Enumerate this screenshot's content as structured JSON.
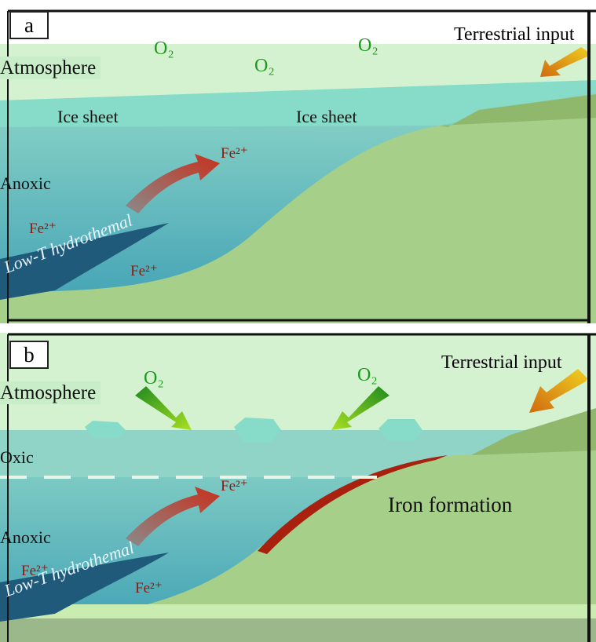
{
  "panel_a": {
    "tag": "a",
    "atmosphere": "Atmosphere",
    "o2_labels": [
      "O₂",
      "O₂",
      "O₂"
    ],
    "ice_sheet_labels": [
      "Ice sheet",
      "Ice sheet"
    ],
    "anoxic": "Anoxic",
    "fe_labels": [
      "Fe²⁺",
      "Fe²⁺",
      "Fe²⁺"
    ],
    "hydrothermal": "Low-T hydrothemal",
    "terrestrial_input": "Terrestrial input"
  },
  "panel_b": {
    "tag": "b",
    "atmosphere": "Atmosphere",
    "o2_labels": [
      "O₂",
      "O₂"
    ],
    "oxic": "Oxic",
    "anoxic": "Anoxic",
    "fe_labels": [
      "Fe²⁺",
      "Fe²⁺",
      "Fe²⁺"
    ],
    "hydrothermal": "Low-T hydrothemal",
    "terrestrial_input": "Terrestrial input",
    "iron_formation": "Iron formation"
  },
  "colors": {
    "atmosphere": "#d4f2d0",
    "ice": "#86dcc8",
    "ocean_top": "#8fd4c8",
    "ocean_bottom": "#3a9fb2",
    "land": "#a6d08a",
    "land_dark": "#8fb86c",
    "hydrothermal": "#1f5a7a",
    "iron_formation": "#a8200e",
    "o2_arrow": "#3aa83a",
    "fe_arrow": "#c0301e",
    "terr_arrow": "#e0a010"
  }
}
